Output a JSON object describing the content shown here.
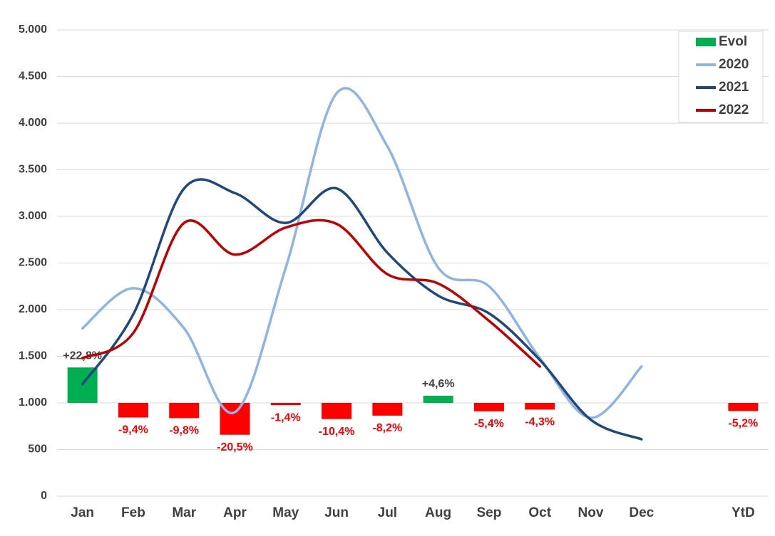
{
  "chart_data": {
    "type": "bar-line",
    "categories": [
      "Jan",
      "Feb",
      "Mar",
      "Apr",
      "May",
      "Jun",
      "Jul",
      "Aug",
      "Sep",
      "Oct",
      "Nov",
      "Dec",
      null,
      "YtD"
    ],
    "ylim": [
      0,
      5000
    ],
    "yticks": [
      0,
      500,
      {
        "value": 1000,
        "label": "1.000"
      },
      {
        "value": 1500,
        "label": "1.500"
      },
      {
        "value": 2000,
        "label": "2.000"
      },
      {
        "value": 2500,
        "label": "2.500"
      },
      {
        "value": 3000,
        "label": "3.000"
      },
      {
        "value": 3500,
        "label": "3.500"
      },
      {
        "value": 4000,
        "label": "4.000"
      },
      {
        "value": 4500,
        "label": "4.500"
      },
      {
        "value": 5000,
        "label": "5.000"
      }
    ],
    "y2lim": [
      -60,
      240
    ],
    "grid": true,
    "legend": "top-right",
    "series": [
      {
        "name": "Evol",
        "type": "bar",
        "axis": "y2",
        "color": "#00b050",
        "negative_color": "#ff0000",
        "values": [
          22.8,
          -9.4,
          -9.8,
          -20.5,
          -1.4,
          -10.4,
          -8.2,
          4.6,
          -5.4,
          -4.3,
          null,
          null,
          null,
          -5.2
        ],
        "value_labels": [
          "+22,8%",
          "-9,4%",
          "-9,8%",
          "-20,5%",
          "-1,4%",
          "-10,4%",
          "-8,2%",
          "+4,6%",
          "-5,4%",
          "-4,3%",
          null,
          null,
          null,
          "-5,2%"
        ]
      },
      {
        "name": "2020",
        "type": "line",
        "color": "#8eb4e3",
        "values": [
          1800,
          2230,
          1800,
          900,
          2450,
          4320,
          3750,
          2450,
          2250,
          1480,
          840,
          1390,
          null,
          null
        ]
      },
      {
        "name": "2021",
        "type": "line",
        "color": "#1f497d",
        "values": [
          1200,
          1950,
          3300,
          3250,
          2930,
          3300,
          2610,
          2150,
          1960,
          1460,
          820,
          610,
          null,
          null
        ]
      },
      {
        "name": "2022",
        "type": "line",
        "color": "#c00000",
        "values": [
          1480,
          1750,
          2930,
          2590,
          2880,
          2920,
          2380,
          2280,
          1880,
          1390,
          null,
          null,
          null,
          null
        ]
      }
    ]
  }
}
